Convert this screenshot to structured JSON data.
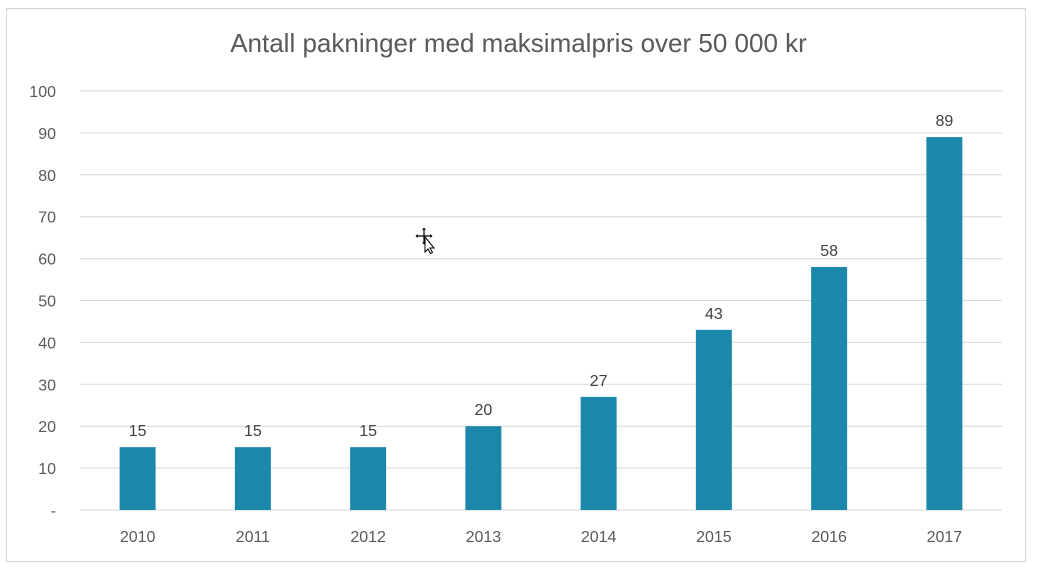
{
  "chart_data": {
    "type": "bar",
    "title": "Antall pakninger med maksimalpris over 50 000 kr",
    "categories": [
      "2010",
      "2011",
      "2012",
      "2013",
      "2014",
      "2015",
      "2016",
      "2017"
    ],
    "values": [
      15,
      15,
      15,
      20,
      27,
      43,
      58,
      89
    ],
    "ylim": [
      0,
      100
    ],
    "yticks": [
      0,
      10,
      20,
      30,
      40,
      50,
      60,
      70,
      80,
      90,
      100
    ],
    "ytick_labels": [
      "-",
      "10",
      "20",
      "30",
      "40",
      "50",
      "60",
      "70",
      "80",
      "90",
      "100"
    ],
    "xlabel": "",
    "ylabel": "",
    "grid": true,
    "data_labels": true,
    "bar_color": "#1a87ab"
  },
  "cursor_icon": "move-cursor-icon"
}
